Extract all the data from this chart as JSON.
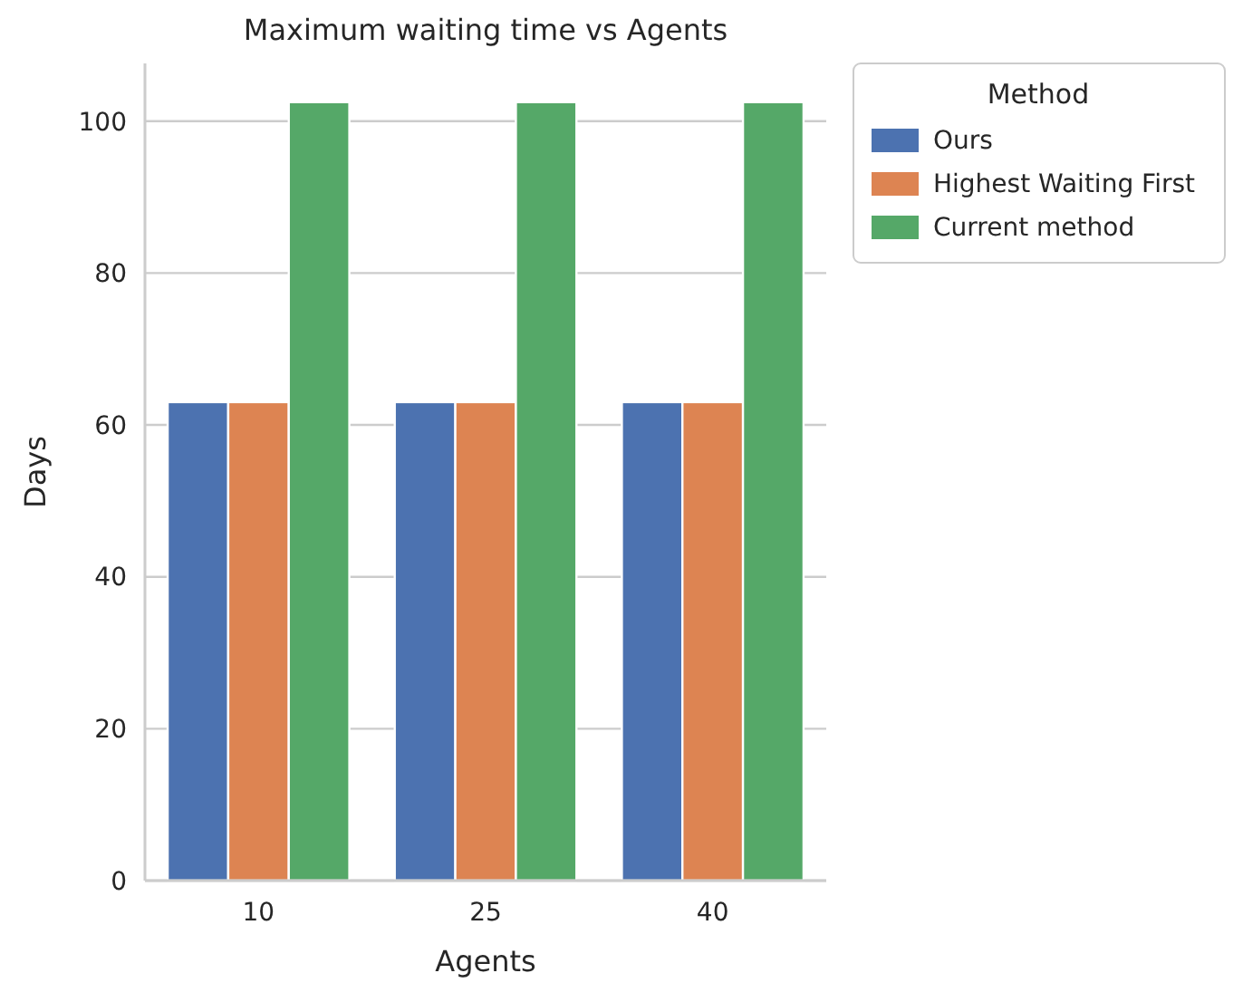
{
  "chart_data": {
    "type": "bar",
    "title": "Maximum waiting time vs Agents",
    "xlabel": "Agents",
    "ylabel": "Days",
    "legend_title": "Method",
    "categories": [
      "10",
      "25",
      "40"
    ],
    "series": [
      {
        "name": "Ours",
        "color": "#4c72b0",
        "values": [
          63,
          63,
          63
        ]
      },
      {
        "name": "Highest Waiting First",
        "color": "#dd8452",
        "values": [
          63,
          63,
          63
        ]
      },
      {
        "name": "Current method",
        "color": "#55a868",
        "values": [
          102.5,
          102.5,
          102.5
        ]
      }
    ],
    "ylim": [
      0,
      107.6
    ],
    "yticks": [
      0,
      20,
      40,
      60,
      80,
      100
    ],
    "grid": "y",
    "legend": "right"
  }
}
